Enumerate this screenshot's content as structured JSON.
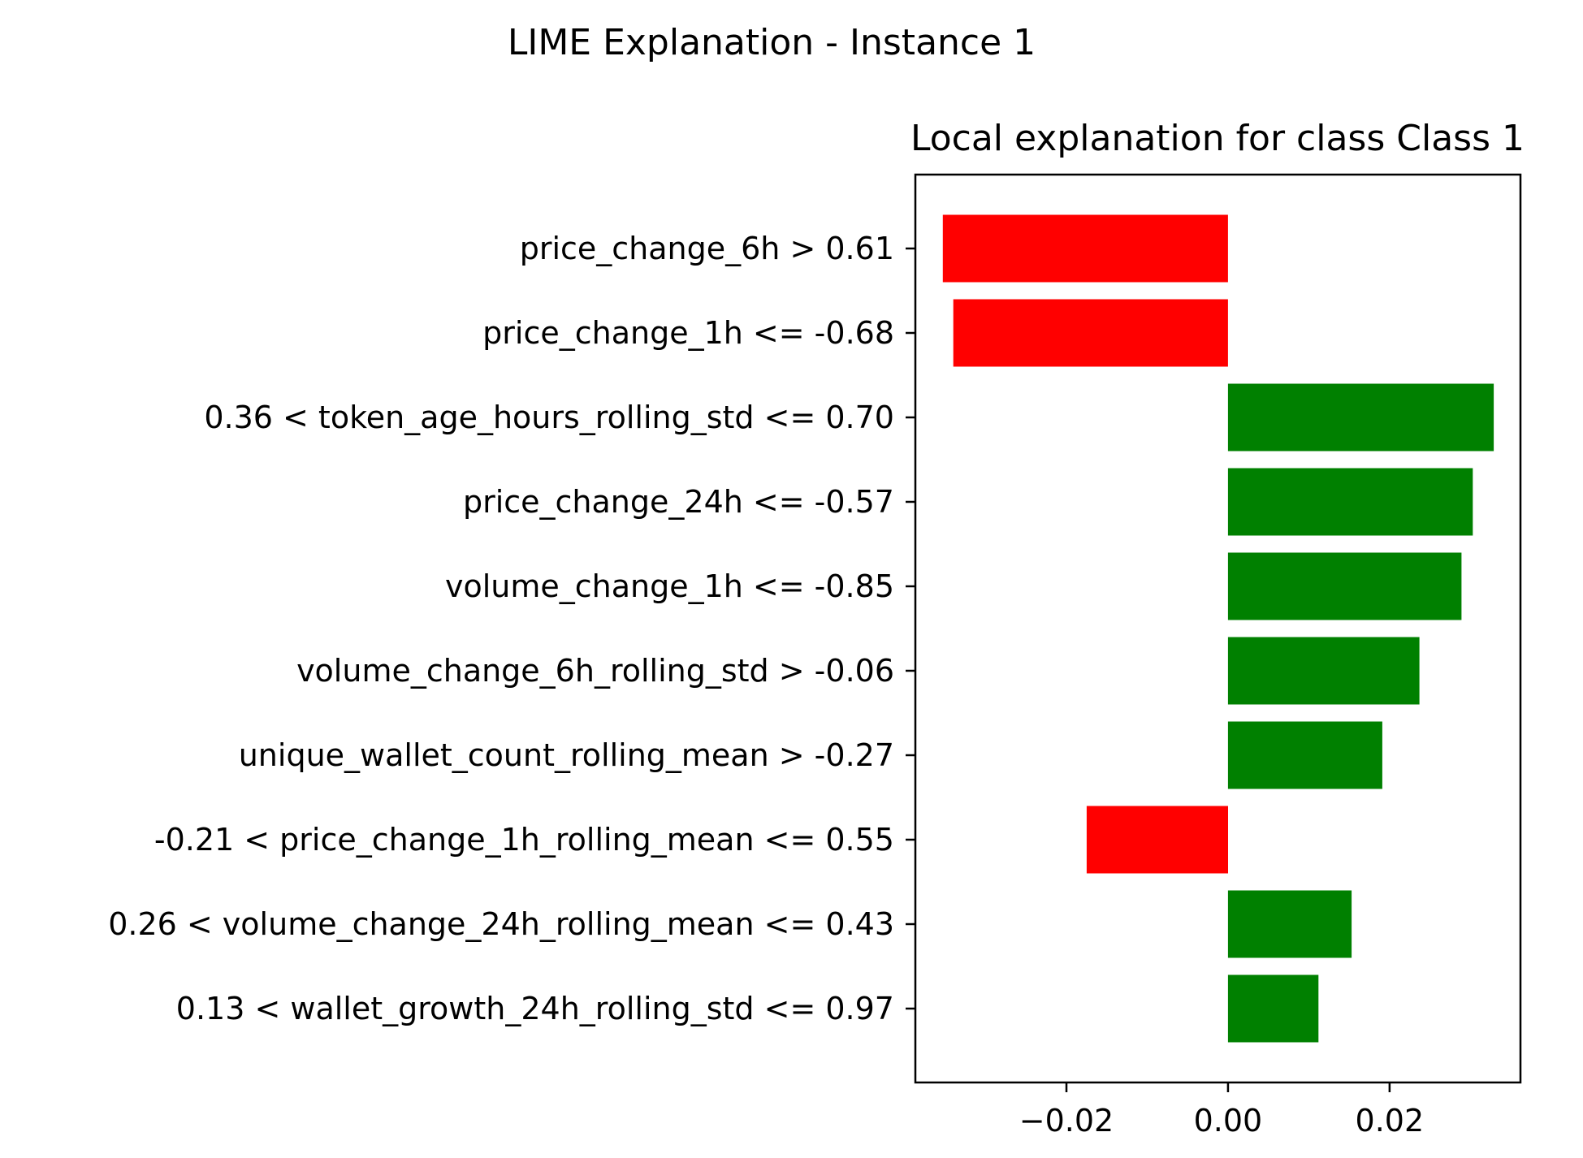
{
  "figure_title": "LIME Explanation - Instance 1",
  "chart_data": {
    "type": "bar",
    "orientation": "horizontal",
    "title": "Local explanation for class Class 1",
    "xlabel": "",
    "ylabel": "",
    "categories": [
      "price_change_6h > 0.61",
      "price_change_1h <= -0.68",
      "0.36 < token_age_hours_rolling_std <= 0.70",
      "price_change_24h <= -0.57",
      "volume_change_1h <= -0.85",
      "volume_change_6h_rolling_std > -0.06",
      "unique_wallet_count_rolling_mean > -0.27",
      "-0.21 < price_change_1h_rolling_mean <= 0.55",
      "0.26 < volume_change_24h_rolling_mean <= 0.43",
      "0.13 < wallet_growth_24h_rolling_std <= 0.97"
    ],
    "values": [
      -0.0353,
      -0.034,
      0.0329,
      0.0303,
      0.0289,
      0.0237,
      0.0191,
      -0.0175,
      0.0153,
      0.0112
    ],
    "xlim": [
      -0.0387,
      0.0362
    ],
    "xticks": [
      -0.02,
      0.0,
      0.02
    ],
    "xtick_labels": [
      "−0.02",
      "0.00",
      "0.02"
    ],
    "grid": false,
    "colors": {
      "positive": "#008000",
      "negative": "#ff0000",
      "axes": "#000000",
      "background": "#ffffff"
    }
  }
}
